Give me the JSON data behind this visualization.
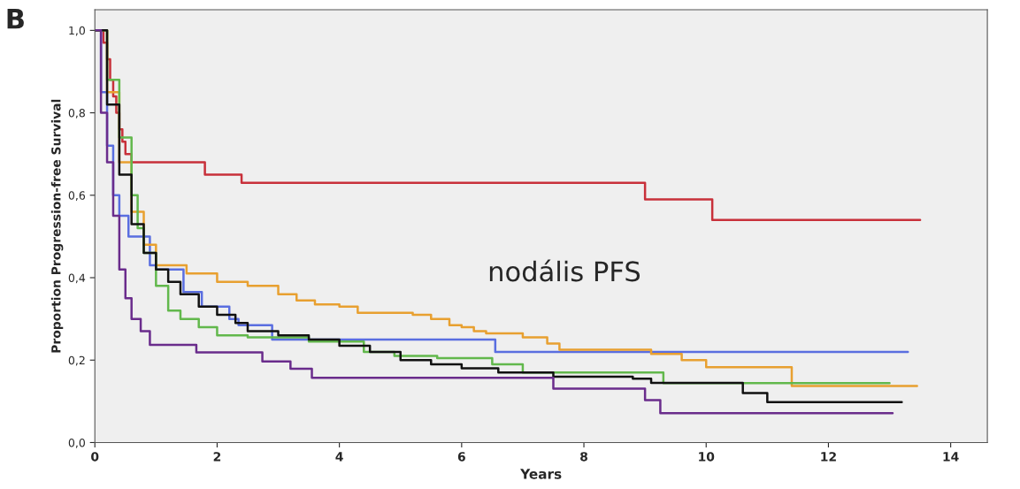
{
  "chart_data": {
    "type": "step",
    "xlabel": "Years",
    "ylabel": "Proportion Progression-free Survival",
    "annotations": [
      "B",
      "nodális PFS"
    ],
    "xlim": [
      0,
      14.6
    ],
    "ylim": [
      0,
      1.05
    ],
    "xticks": [
      0,
      2,
      4,
      6,
      8,
      10,
      12,
      14
    ],
    "yticks": [
      {
        "value": 0,
        "label": "0,0"
      },
      {
        "value": 0.2,
        "label": "0,2"
      },
      {
        "value": 0.4,
        "label": "0,4"
      },
      {
        "value": 0.6,
        "label": "0,6"
      },
      {
        "value": 0.8,
        "label": "0,8"
      },
      {
        "value": 1.0,
        "label": "1,0"
      }
    ],
    "grid": false,
    "legend": false,
    "series": [
      {
        "color": "#c8303a",
        "x": [
          0,
          0.14,
          0.2,
          0.25,
          0.3,
          0.35,
          0.4,
          0.45,
          0.5,
          0.6,
          1.8,
          2.4,
          9.0,
          10.1,
          13.5
        ],
        "values": [
          1.0,
          0.97,
          0.93,
          0.88,
          0.84,
          0.8,
          0.76,
          0.73,
          0.7,
          0.68,
          0.65,
          0.63,
          0.59,
          0.54,
          0.54
        ]
      },
      {
        "color": "#5a6ee0",
        "x": [
          0,
          0.1,
          0.2,
          0.3,
          0.4,
          0.55,
          0.9,
          1.0,
          1.45,
          1.75,
          2.2,
          2.35,
          2.9,
          6.55,
          13.3
        ],
        "values": [
          1.0,
          0.85,
          0.72,
          0.6,
          0.55,
          0.5,
          0.43,
          0.42,
          0.365,
          0.33,
          0.3,
          0.285,
          0.25,
          0.22,
          0.22
        ]
      },
      {
        "color": "#e8a030",
        "x": [
          0,
          0.2,
          0.4,
          0.6,
          0.8,
          1.0,
          1.5,
          2.0,
          2.5,
          3.0,
          3.3,
          3.6,
          4.0,
          4.3,
          5.2,
          5.5,
          5.8,
          6.0,
          6.2,
          6.4,
          7.0,
          7.4,
          7.6,
          9.1,
          9.6,
          10.0,
          11.4,
          13.45
        ],
        "values": [
          1.0,
          0.85,
          0.68,
          0.56,
          0.48,
          0.43,
          0.41,
          0.39,
          0.38,
          0.36,
          0.345,
          0.335,
          0.33,
          0.315,
          0.31,
          0.3,
          0.285,
          0.28,
          0.27,
          0.265,
          0.255,
          0.24,
          0.225,
          0.215,
          0.2,
          0.183,
          0.137,
          0.137
        ]
      },
      {
        "color": "#62b84c",
        "x": [
          0,
          0.2,
          0.4,
          0.6,
          0.7,
          0.8,
          1.0,
          1.2,
          1.4,
          1.7,
          2.0,
          2.5,
          3.5,
          4.4,
          4.9,
          5.6,
          6.5,
          7.0,
          9.3,
          13.0
        ],
        "values": [
          1.0,
          0.88,
          0.74,
          0.6,
          0.52,
          0.46,
          0.38,
          0.32,
          0.3,
          0.28,
          0.26,
          0.255,
          0.245,
          0.22,
          0.21,
          0.205,
          0.19,
          0.17,
          0.144,
          0.144
        ]
      },
      {
        "color": "#111111",
        "x": [
          0,
          0.2,
          0.4,
          0.6,
          0.8,
          1.0,
          1.2,
          1.4,
          1.7,
          2.0,
          2.3,
          2.5,
          3.0,
          3.5,
          4.0,
          4.5,
          5.0,
          5.5,
          6.0,
          6.6,
          7.5,
          8.8,
          9.1,
          10.6,
          11.0,
          13.2
        ],
        "values": [
          1.0,
          0.82,
          0.65,
          0.53,
          0.46,
          0.42,
          0.39,
          0.36,
          0.33,
          0.31,
          0.29,
          0.27,
          0.26,
          0.25,
          0.235,
          0.22,
          0.2,
          0.19,
          0.18,
          0.17,
          0.16,
          0.155,
          0.145,
          0.12,
          0.098,
          0.098
        ]
      },
      {
        "color": "#6a2c8c",
        "x": [
          0,
          0.1,
          0.2,
          0.3,
          0.4,
          0.5,
          0.6,
          0.75,
          0.9,
          1.66,
          2.74,
          3.2,
          3.55,
          7.5,
          9.0,
          9.25,
          13.05
        ],
        "values": [
          1.0,
          0.8,
          0.68,
          0.55,
          0.42,
          0.35,
          0.3,
          0.27,
          0.237,
          0.219,
          0.197,
          0.179,
          0.157,
          0.131,
          0.103,
          0.071,
          0.071
        ]
      }
    ]
  }
}
